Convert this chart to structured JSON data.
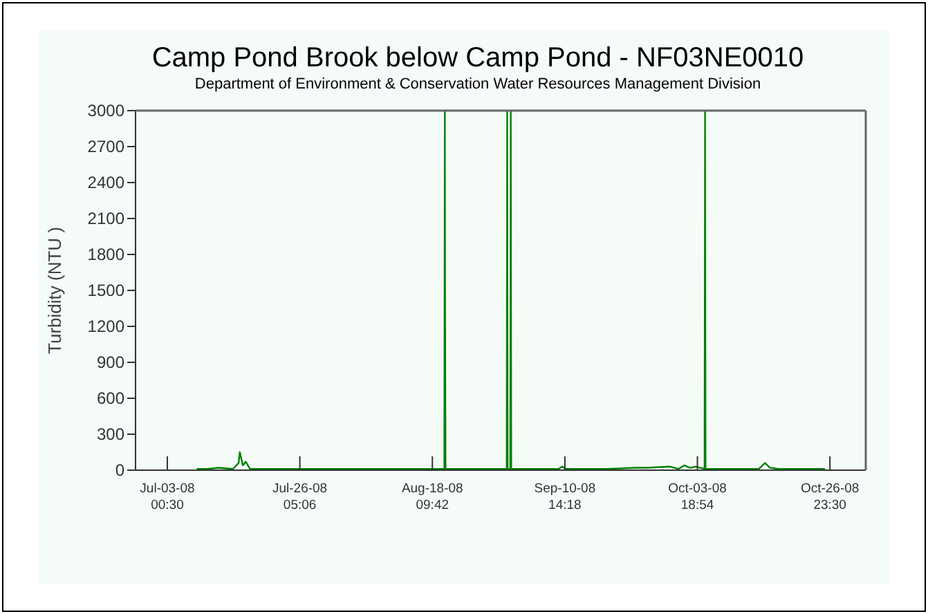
{
  "chart_data": {
    "type": "line",
    "title": "Camp Pond Brook below Camp Pond - NF03NE0010",
    "subtitle": "Department of Environment & Conservation Water Resources Management Division",
    "ylabel": "Turbidity (NTU )",
    "x": [
      "2008-07-08T04:00",
      "2008-07-10T00:00",
      "2008-07-12T00:00",
      "2008-07-14T12:00",
      "2008-07-15T12:00",
      "2008-07-15T17:00",
      "2008-07-16T06:00",
      "2008-07-16T18:00",
      "2008-07-17T12:00",
      "2008-07-20T00:00",
      "2008-07-24T00:00",
      "2008-07-30T00:00",
      "2008-08-05T00:00",
      "2008-08-12T00:00",
      "2008-08-20T12:00",
      "2008-08-20T14:00",
      "2008-08-20T15:00",
      "2008-08-20T17:00",
      "2008-08-24T00:00",
      "2008-08-31T10:00",
      "2008-08-31T12:00",
      "2008-08-31T14:00",
      "2008-09-01T01:00",
      "2008-09-01T03:00",
      "2008-09-01T05:00",
      "2008-09-05T00:00",
      "2008-09-09T12:00",
      "2008-09-10T03:00",
      "2008-09-10T18:00",
      "2008-09-18T00:00",
      "2008-09-23T00:00",
      "2008-09-25T00:00",
      "2008-09-29T00:00",
      "2008-09-30T12:00",
      "2008-10-01T12:00",
      "2008-10-02T12:00",
      "2008-10-03T12:00",
      "2008-10-05T01:00",
      "2008-10-05T03:00",
      "2008-10-05T05:00",
      "2008-10-10T00:00",
      "2008-10-14T12:00",
      "2008-10-15T15:00",
      "2008-10-16T12:00",
      "2008-10-18T00:00",
      "2008-10-26T03:00"
    ],
    "series": [
      {
        "color": "#008000",
        "values": [
          10,
          10,
          20,
          10,
          60,
          150,
          40,
          70,
          10,
          10,
          10,
          10,
          10,
          10,
          10,
          3000,
          1500,
          10,
          10,
          10,
          3000,
          10,
          10,
          3000,
          10,
          10,
          10,
          30,
          10,
          10,
          20,
          20,
          30,
          10,
          40,
          20,
          30,
          10,
          3000,
          10,
          10,
          10,
          60,
          20,
          10,
          10
        ]
      }
    ],
    "xlim": [
      "2008-06-27T11:00",
      "2008-11-02T06:00"
    ],
    "xticks": [
      {
        "value": "2008-07-03T00:30",
        "label": "Jul-03-08\n00:30"
      },
      {
        "value": "2008-07-26T05:06",
        "label": "Jul-26-08\n05:06"
      },
      {
        "value": "2008-08-18T09:42",
        "label": "Aug-18-08\n09:42"
      },
      {
        "value": "2008-09-10T14:18",
        "label": "Sep-10-08\n14:18"
      },
      {
        "value": "2008-10-03T18:54",
        "label": "Oct-03-08\n18:54"
      },
      {
        "value": "2008-10-26T23:30",
        "label": "Oct-26-08\n23:30"
      }
    ],
    "ylim": [
      0,
      3000
    ],
    "yticks": [
      0,
      300,
      600,
      900,
      1200,
      1500,
      1800,
      2100,
      2400,
      2700,
      3000
    ]
  }
}
